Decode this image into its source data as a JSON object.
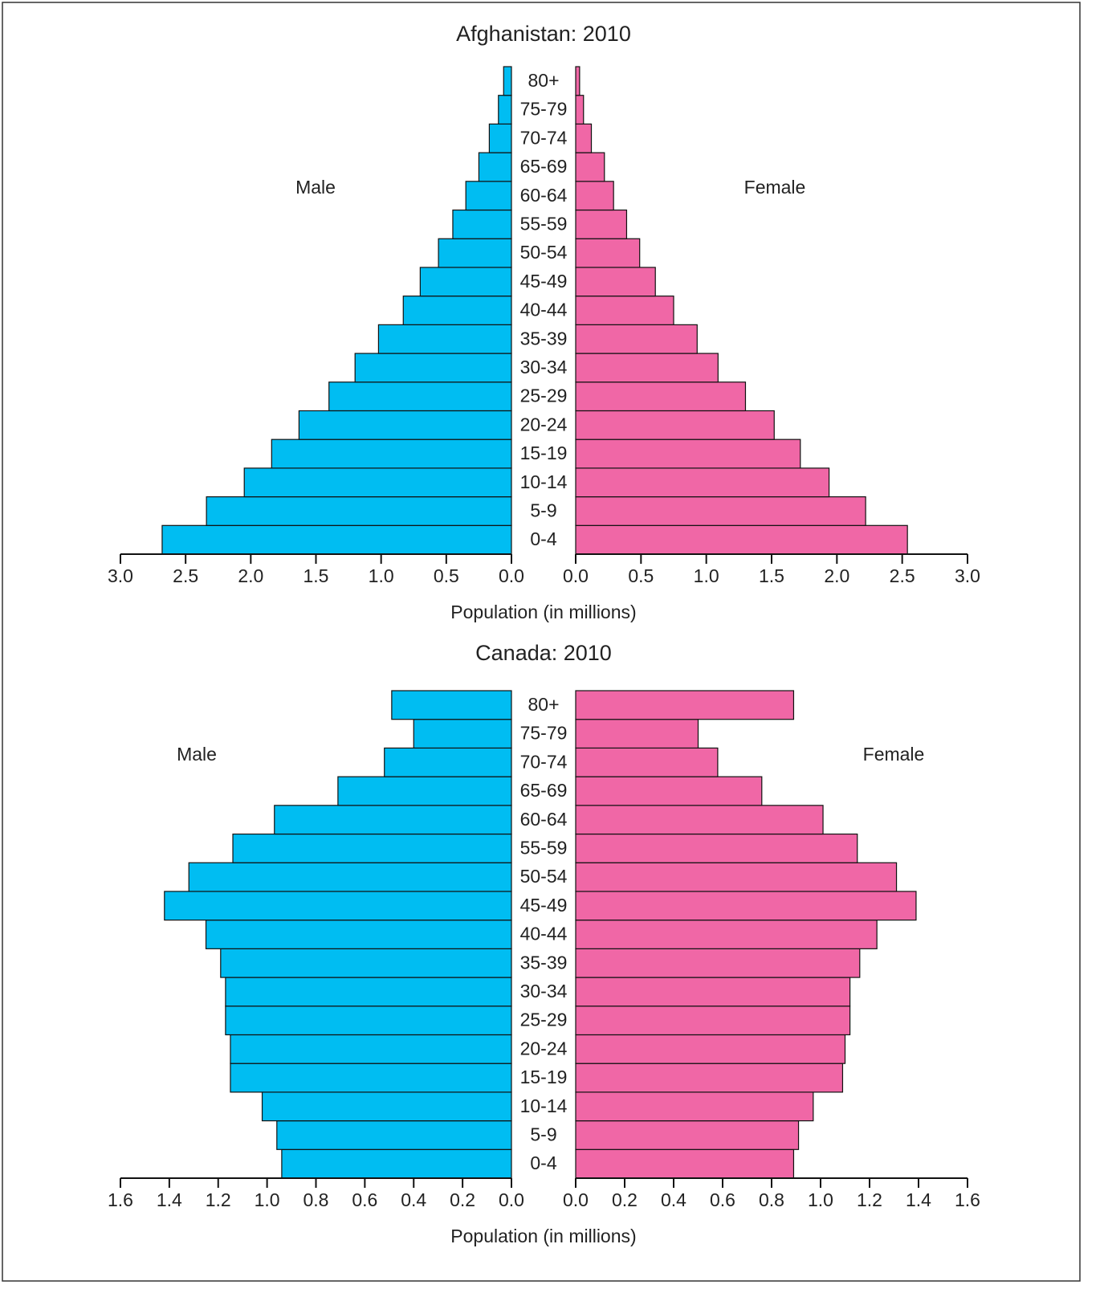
{
  "chart_data": [
    {
      "type": "pyramid",
      "title": "Afghanistan: 2010",
      "xlabel": "Population (in millions)",
      "categories": [
        "0-4",
        "5-9",
        "10-14",
        "15-19",
        "20-24",
        "25-29",
        "30-34",
        "35-39",
        "40-44",
        "45-49",
        "50-54",
        "55-59",
        "60-64",
        "65-69",
        "70-74",
        "75-79",
        "80+"
      ],
      "series": [
        {
          "name": "Male",
          "color": "#00bdf2",
          "values": [
            2.68,
            2.34,
            2.05,
            1.84,
            1.63,
            1.4,
            1.2,
            1.02,
            0.83,
            0.7,
            0.56,
            0.45,
            0.35,
            0.25,
            0.17,
            0.1,
            0.06
          ]
        },
        {
          "name": "Female",
          "color": "#f067a6",
          "values": [
            2.54,
            2.22,
            1.94,
            1.72,
            1.52,
            1.3,
            1.09,
            0.93,
            0.75,
            0.61,
            0.49,
            0.39,
            0.29,
            0.22,
            0.12,
            0.06,
            0.03
          ]
        }
      ],
      "xlim": [
        0,
        3
      ],
      "xticks": [
        {
          "value": 0,
          "label": "0.0"
        },
        0.5,
        {
          "value": 1,
          "label": "1.0"
        },
        1.5,
        {
          "value": 2,
          "label": "2.0"
        },
        2.5,
        {
          "value": 3,
          "label": "3.0"
        }
      ]
    },
    {
      "type": "pyramid",
      "title": "Canada: 2010",
      "xlabel": "Population (in millions)",
      "categories": [
        "0-4",
        "5-9",
        "10-14",
        "15-19",
        "20-24",
        "25-29",
        "30-34",
        "35-39",
        "40-44",
        "45-49",
        "50-54",
        "55-59",
        "60-64",
        "65-69",
        "70-74",
        "75-79",
        "80+"
      ],
      "series": [
        {
          "name": "Male",
          "color": "#00bdf2",
          "values": [
            0.94,
            0.96,
            1.02,
            1.15,
            1.15,
            1.17,
            1.17,
            1.19,
            1.25,
            1.42,
            1.32,
            1.14,
            0.97,
            0.71,
            0.52,
            0.4,
            0.49
          ]
        },
        {
          "name": "Female",
          "color": "#f067a6",
          "values": [
            0.89,
            0.91,
            0.97,
            1.09,
            1.1,
            1.12,
            1.12,
            1.16,
            1.23,
            1.39,
            1.31,
            1.15,
            1.01,
            0.76,
            0.58,
            0.5,
            0.89
          ]
        }
      ],
      "xlim": [
        0,
        1.6
      ],
      "xticks": [
        {
          "value": 0,
          "label": "0.0"
        },
        0.2,
        0.4,
        0.6,
        0.8,
        {
          "value": 1,
          "label": "1.0"
        },
        1.2,
        1.4,
        1.6
      ]
    }
  ]
}
